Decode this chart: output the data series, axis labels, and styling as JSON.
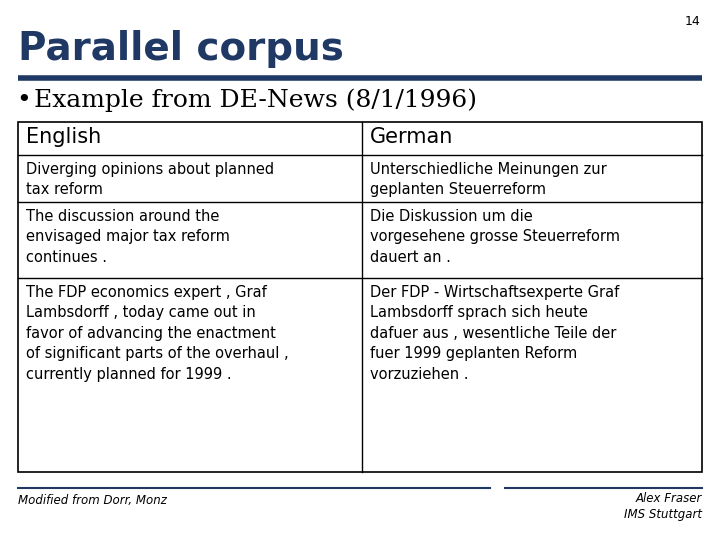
{
  "slide_number": "14",
  "title": "Parallel corpus",
  "bullet": "Example from DE-News (8/1/1996)",
  "title_color": "#1F3864",
  "title_line_color": "#1F3864",
  "background_color": "#ffffff",
  "col_headers": [
    "English",
    "German"
  ],
  "rows": [
    [
      "Diverging opinions about planned\ntax reform",
      "Unterschiedliche Meinungen zur\ngeplanten Steuerreform"
    ],
    [
      "The discussion around the\nenvisaged major tax reform\ncontinues .",
      "Die Diskussion um die\nvorgesehene grosse Steuerreform\ndauert an ."
    ],
    [
      "The FDP economics expert , Graf\nLambsdorff , today came out in\nfavor of advancing the enactment\nof significant parts of the overhaul ,\ncurrently planned for 1999 .",
      "Der FDP - Wirtschaftsexperte Graf\nLambsdorff sprach sich heute\ndafuer aus , wesentliche Teile der\nfuer 1999 geplanten Reform\nvorzuziehen ."
    ]
  ],
  "footer_left": "Modified from Dorr, Monz",
  "footer_right_line1": "Alex Fraser",
  "footer_right_line2": "IMS Stuttgart",
  "footer_line_color": "#1F3864",
  "table_border_color": "#000000",
  "text_color": "#000000"
}
